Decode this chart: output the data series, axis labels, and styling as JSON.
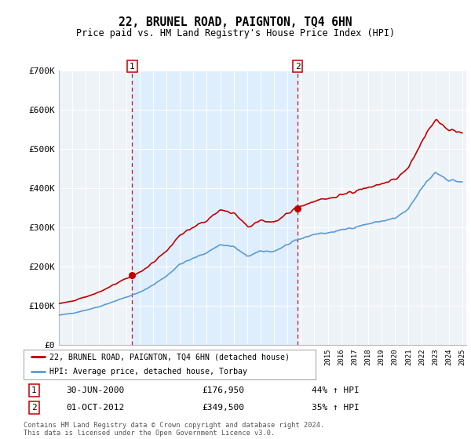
{
  "title": "22, BRUNEL ROAD, PAIGNTON, TQ4 6HN",
  "subtitle": "Price paid vs. HM Land Registry's House Price Index (HPI)",
  "ylim": [
    0,
    700000
  ],
  "yticks": [
    0,
    100000,
    200000,
    300000,
    400000,
    500000,
    600000,
    700000
  ],
  "ytick_labels": [
    "£0",
    "£100K",
    "£200K",
    "£300K",
    "£400K",
    "£500K",
    "£600K",
    "£700K"
  ],
  "hpi_color": "#5b9bd5",
  "price_color": "#c00000",
  "shade_color": "#ddeeff",
  "marker1_date_num": 2000.458,
  "marker1_price": 176950,
  "marker1_label": "30-JUN-2000",
  "marker1_value": "£176,950",
  "marker1_pct": "44% ↑ HPI",
  "marker2_date_num": 2012.75,
  "marker2_price": 349500,
  "marker2_label": "01-OCT-2012",
  "marker2_value": "£349,500",
  "marker2_pct": "35% ↑ HPI",
  "legend_line1": "22, BRUNEL ROAD, PAIGNTON, TQ4 6HN (detached house)",
  "legend_line2": "HPI: Average price, detached house, Torbay",
  "footer1": "Contains HM Land Registry data © Crown copyright and database right 2024.",
  "footer2": "This data is licensed under the Open Government Licence v3.0.",
  "background_color": "#ffffff",
  "plot_bg_color": "#eef3f8"
}
